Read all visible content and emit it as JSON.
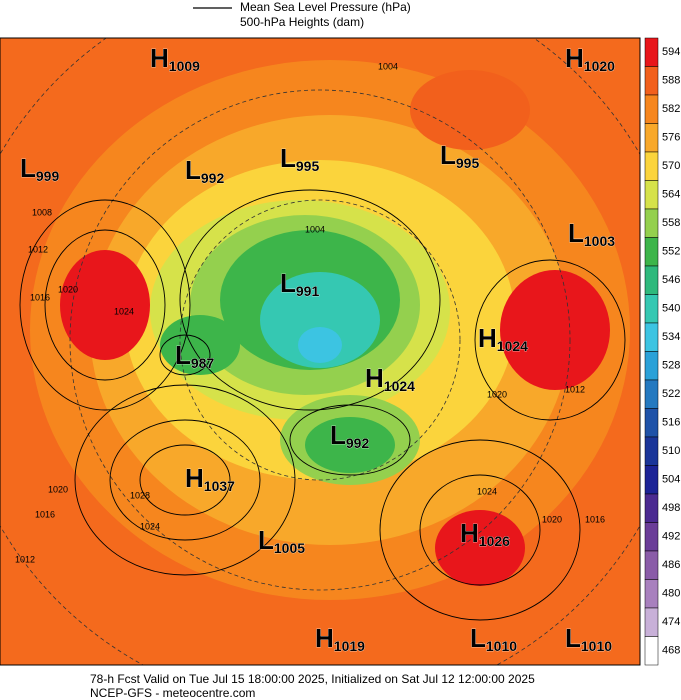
{
  "legend": [
    "Mean Sea Level Pressure (hPa)",
    "500-hPa Heights (dam)"
  ],
  "centers": [
    {
      "letter": "H",
      "value": "1009"
    },
    {
      "letter": "L",
      "value": "999"
    },
    {
      "letter": "L",
      "value": "992"
    },
    {
      "letter": "L",
      "value": "995"
    },
    {
      "letter": "L",
      "value": "995"
    },
    {
      "letter": "H",
      "value": "1020"
    },
    {
      "letter": "L",
      "value": "1003"
    },
    {
      "letter": "L",
      "value": "991"
    },
    {
      "letter": "L",
      "value": "987"
    },
    {
      "letter": "H",
      "value": "1024"
    },
    {
      "letter": "H",
      "value": "1024"
    },
    {
      "letter": "L",
      "value": "992"
    },
    {
      "letter": "H",
      "value": "1037"
    },
    {
      "letter": "L",
      "value": "1005"
    },
    {
      "letter": "H",
      "value": "1026"
    },
    {
      "letter": "H",
      "value": "1019"
    },
    {
      "letter": "L",
      "value": "1010"
    },
    {
      "letter": "L",
      "value": "1010"
    }
  ],
  "contour_labels": [
    "1004",
    "1004",
    "1008",
    "1012",
    "1016",
    "1020",
    "1024",
    "1028",
    "1024",
    "1020",
    "1016",
    "1012",
    "1020",
    "1024",
    "1020",
    "1016",
    "1012"
  ],
  "colorbar": {
    "labels": [
      594,
      588,
      582,
      576,
      570,
      564,
      558,
      552,
      546,
      540,
      534,
      528,
      522,
      516,
      510,
      504,
      498,
      492,
      486,
      480,
      474,
      468
    ],
    "colors": [
      "#e8161b",
      "#f2601c",
      "#f6861e",
      "#f8a82a",
      "#fbd43c",
      "#d6e24a",
      "#94d04e",
      "#3db54a",
      "#2fb97c",
      "#35c8b2",
      "#3cc4e2",
      "#2aa1d8",
      "#2479c0",
      "#1f52a8",
      "#1a3599",
      "#1c2396",
      "#4b2a91",
      "#6b3d98",
      "#8a5ca8",
      "#a880be",
      "#c8b0d8",
      "#ffffff"
    ]
  },
  "footer": [
    "78-h Fcst Valid on Tue Jul 15 18:00:00 2025, Initialized on Sat Jul 12 12:00:00 2025",
    "NCEP-GFS  - meteocentre.com"
  ]
}
